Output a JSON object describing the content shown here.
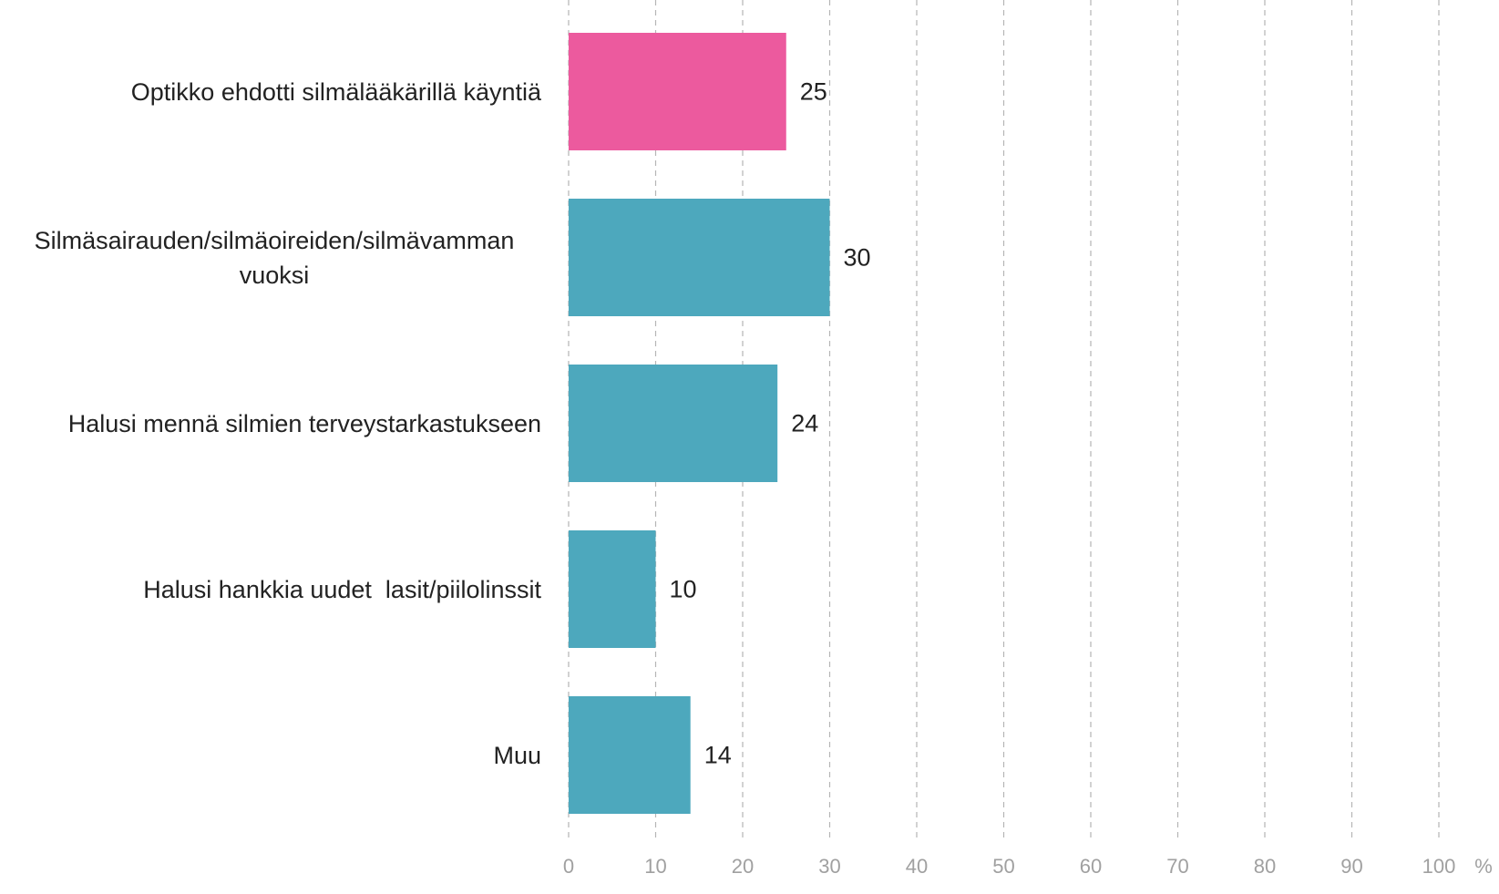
{
  "chart_data": {
    "type": "bar",
    "orientation": "horizontal",
    "categories": [
      "Optikko ehdotti silmälääkärillä käyntiä",
      "Silmäsairauden/silmäoireiden/silmävamman vuoksi",
      "Halusi mennä silmien terveystarkastukseen",
      "Halusi hankkia uudet  lasit/piilolinssit",
      "Muu"
    ],
    "values": [
      25,
      30,
      24,
      10,
      14
    ],
    "colors": [
      "#ec5a9e",
      "#4da8bd",
      "#4da8bd",
      "#4da8bd",
      "#4da8bd"
    ],
    "xlim": [
      0,
      100
    ],
    "xticks": [
      0,
      10,
      20,
      30,
      40,
      50,
      60,
      70,
      80,
      90,
      100
    ],
    "xlabel": "%",
    "grid": true
  }
}
